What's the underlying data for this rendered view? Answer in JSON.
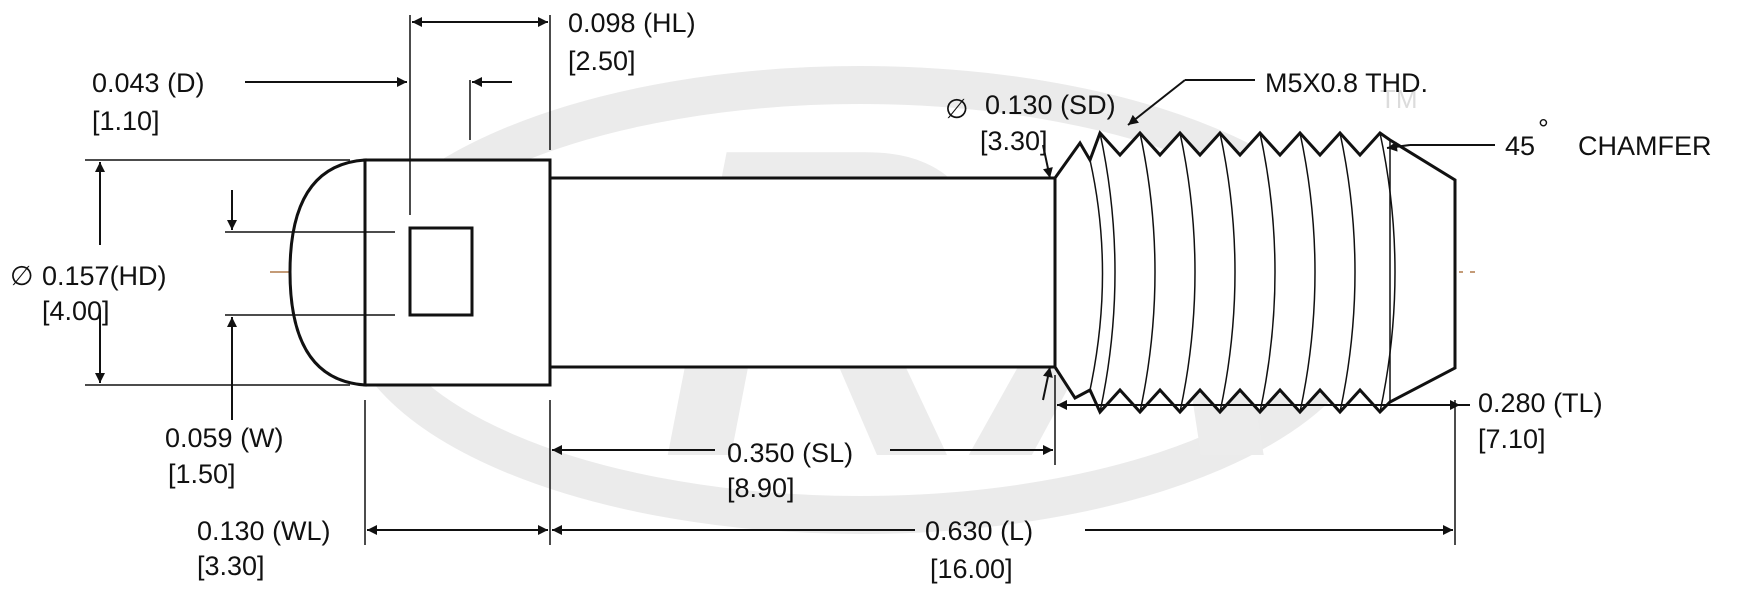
{
  "watermark": {
    "text": "RA",
    "mark": "TM",
    "color": "#e4e4e4"
  },
  "colors": {
    "centerline": "#b07a4a",
    "line": "#111111"
  },
  "dimensions": {
    "hl": {
      "value": "0.098 (HL)",
      "metric": "[2.50]"
    },
    "d": {
      "value": "0.043 (D)",
      "metric": "[1.10]"
    },
    "hd": {
      "symbol": "∅",
      "value": "0.157(HD)",
      "metric": "[4.00]"
    },
    "w": {
      "value": "0.059 (W)",
      "metric": "[1.50]"
    },
    "wl": {
      "value": "0.130 (WL)",
      "metric": "[3.30]"
    },
    "sl": {
      "value": "0.350 (SL)",
      "metric": "[8.90]"
    },
    "l": {
      "value": "0.630   (L)",
      "metric": "[16.00]"
    },
    "sd": {
      "symbol": "∅",
      "value": "0.130 (SD)",
      "metric": "[3.30]"
    },
    "tl": {
      "value": "0.280 (TL)",
      "metric": "[7.10]"
    }
  },
  "notes": {
    "thread": "M5X0.8 THD.",
    "chamfer_angle": "45",
    "chamfer_degree": "°",
    "chamfer_label": "CHAMFER"
  }
}
